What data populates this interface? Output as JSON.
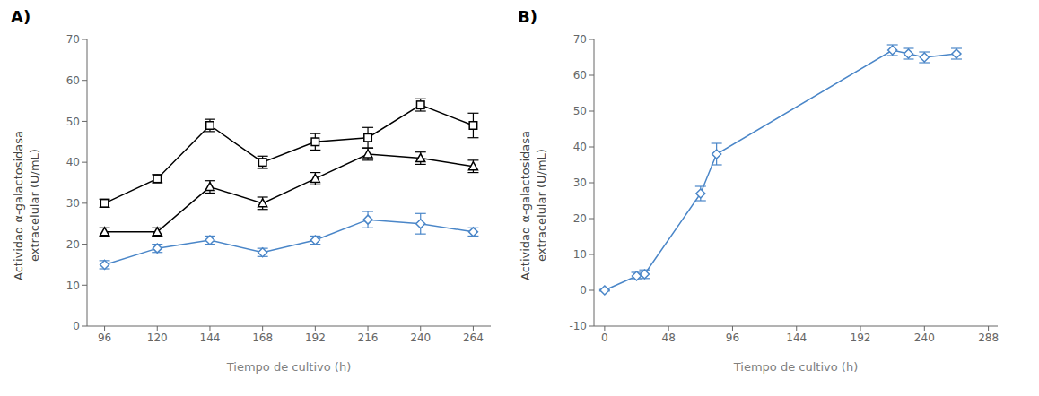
{
  "chart_data": [
    {
      "type": "line",
      "title": "A)",
      "xlabel": "Tiempo de cultivo (h)",
      "ylabel": "Actividad α-galactosidasa\nextracelular (U/mL)",
      "x": [
        96,
        120,
        144,
        168,
        192,
        216,
        240,
        264
      ],
      "xlim": [
        88,
        272
      ],
      "xticks": [
        96,
        120,
        144,
        168,
        192,
        216,
        240,
        264
      ],
      "ylim": [
        0,
        70
      ],
      "yticks": [
        0,
        10,
        20,
        30,
        40,
        50,
        60,
        70
      ],
      "grid": false,
      "series": [
        {
          "color": "#000000",
          "marker": "triangle",
          "line_style": "solid",
          "values": [
            23,
            23,
            34,
            30,
            36,
            42,
            41,
            39
          ],
          "yerr": [
            1.0,
            1.0,
            1.5,
            1.5,
            1.5,
            1.5,
            1.5,
            1.5
          ]
        },
        {
          "color": "#000000",
          "marker": "square",
          "line_style": "solid",
          "values": [
            30,
            36,
            49,
            40,
            45,
            46,
            54,
            49
          ],
          "yerr": [
            1.0,
            1.0,
            1.5,
            1.5,
            2.0,
            2.5,
            1.5,
            3.0
          ]
        },
        {
          "color": "#4a86c8",
          "marker": "diamond",
          "line_style": "solid",
          "values": [
            15,
            19,
            21,
            18,
            21,
            26,
            25,
            23
          ],
          "yerr": [
            1.0,
            1.0,
            1.0,
            1.0,
            1.0,
            2.0,
            2.5,
            1.0
          ]
        }
      ]
    },
    {
      "type": "line",
      "title": "B)",
      "xlabel": "Tiempo de cultivo (h)",
      "ylabel": "Actividad α-galactosidasa\nextracelular (U/mL)",
      "x": [
        0,
        24,
        30,
        72,
        84,
        216,
        228,
        240,
        264
      ],
      "xlim": [
        -8,
        295
      ],
      "xticks": [
        0,
        48,
        96,
        144,
        192,
        240,
        288
      ],
      "ylim": [
        -10,
        70
      ],
      "yticks": [
        -10,
        0,
        10,
        20,
        30,
        40,
        50,
        60,
        70
      ],
      "grid": false,
      "series": [
        {
          "color": "#4a86c8",
          "marker": "diamond",
          "line_style": "solid",
          "values": [
            0,
            4,
            4.5,
            27,
            38,
            67,
            66,
            65,
            66
          ],
          "yerr": [
            0.2,
            1.0,
            1.2,
            2.0,
            3.0,
            1.5,
            1.5,
            1.5,
            1.5
          ]
        }
      ]
    }
  ]
}
